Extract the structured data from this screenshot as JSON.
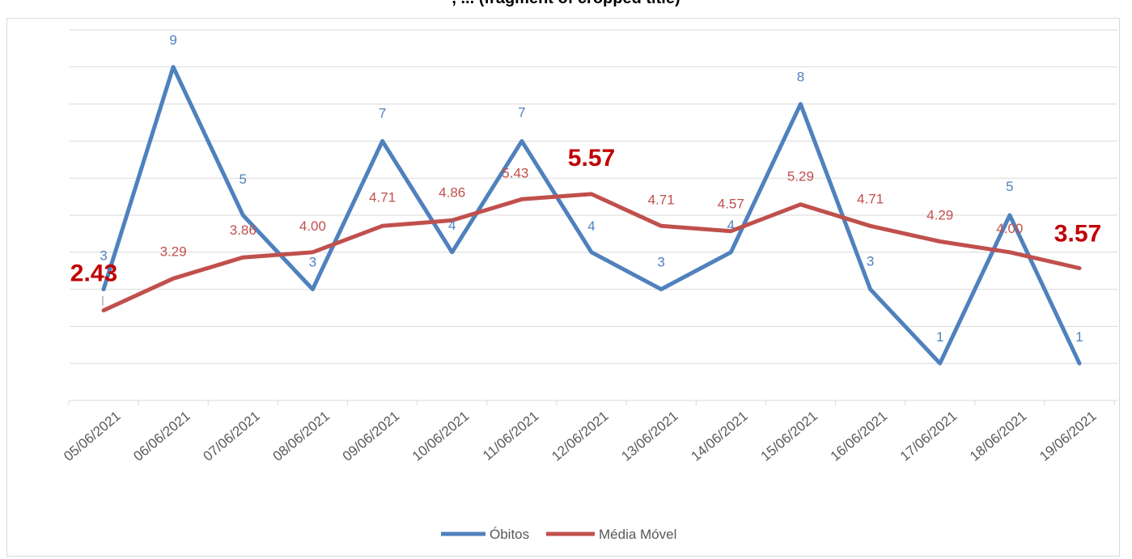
{
  "header_fragment": ", ... (fragment of cropped title)",
  "colors": {
    "obitos": "#4f81bd",
    "media": "#c0504d",
    "grid": "#d9d9d9",
    "axis_text": "#595959",
    "highlight": "#c00000"
  },
  "chart_data": {
    "type": "line",
    "categories": [
      "05/06/2021",
      "06/06/2021",
      "07/06/2021",
      "08/06/2021",
      "09/06/2021",
      "10/06/2021",
      "11/06/2021",
      "12/06/2021",
      "13/06/2021",
      "14/06/2021",
      "15/06/2021",
      "16/06/2021",
      "17/06/2021",
      "18/06/2021",
      "19/06/2021"
    ],
    "series": [
      {
        "name": "Óbitos",
        "values": [
          3,
          9,
          5,
          3,
          7,
          4,
          7,
          4,
          3,
          4,
          8,
          3,
          1,
          5,
          1
        ],
        "labels": [
          "3",
          "9",
          "5",
          "3",
          "7",
          "4",
          "7",
          "4",
          "3",
          "4",
          "8",
          "3",
          "1",
          "5",
          "1"
        ]
      },
      {
        "name": "Média Móvel",
        "values": [
          2.43,
          3.29,
          3.86,
          4.0,
          4.71,
          4.86,
          5.43,
          5.57,
          4.71,
          4.57,
          5.29,
          4.71,
          4.29,
          4.0,
          3.57
        ],
        "labels": [
          "2.43",
          "3.29",
          "3.86",
          "4.00",
          "4.71",
          "4.86",
          "5.43",
          "5.57",
          "4.71",
          "4.57",
          "5.29",
          "4.71",
          "4.29",
          "4.00",
          "3.57"
        ]
      }
    ],
    "highlighted_labels": [
      "2.43",
      "5.57",
      "3.57"
    ],
    "ylim": [
      0,
      10
    ],
    "grid": true,
    "legend": "bottom",
    "title": "",
    "xlabel": "",
    "ylabel": ""
  }
}
